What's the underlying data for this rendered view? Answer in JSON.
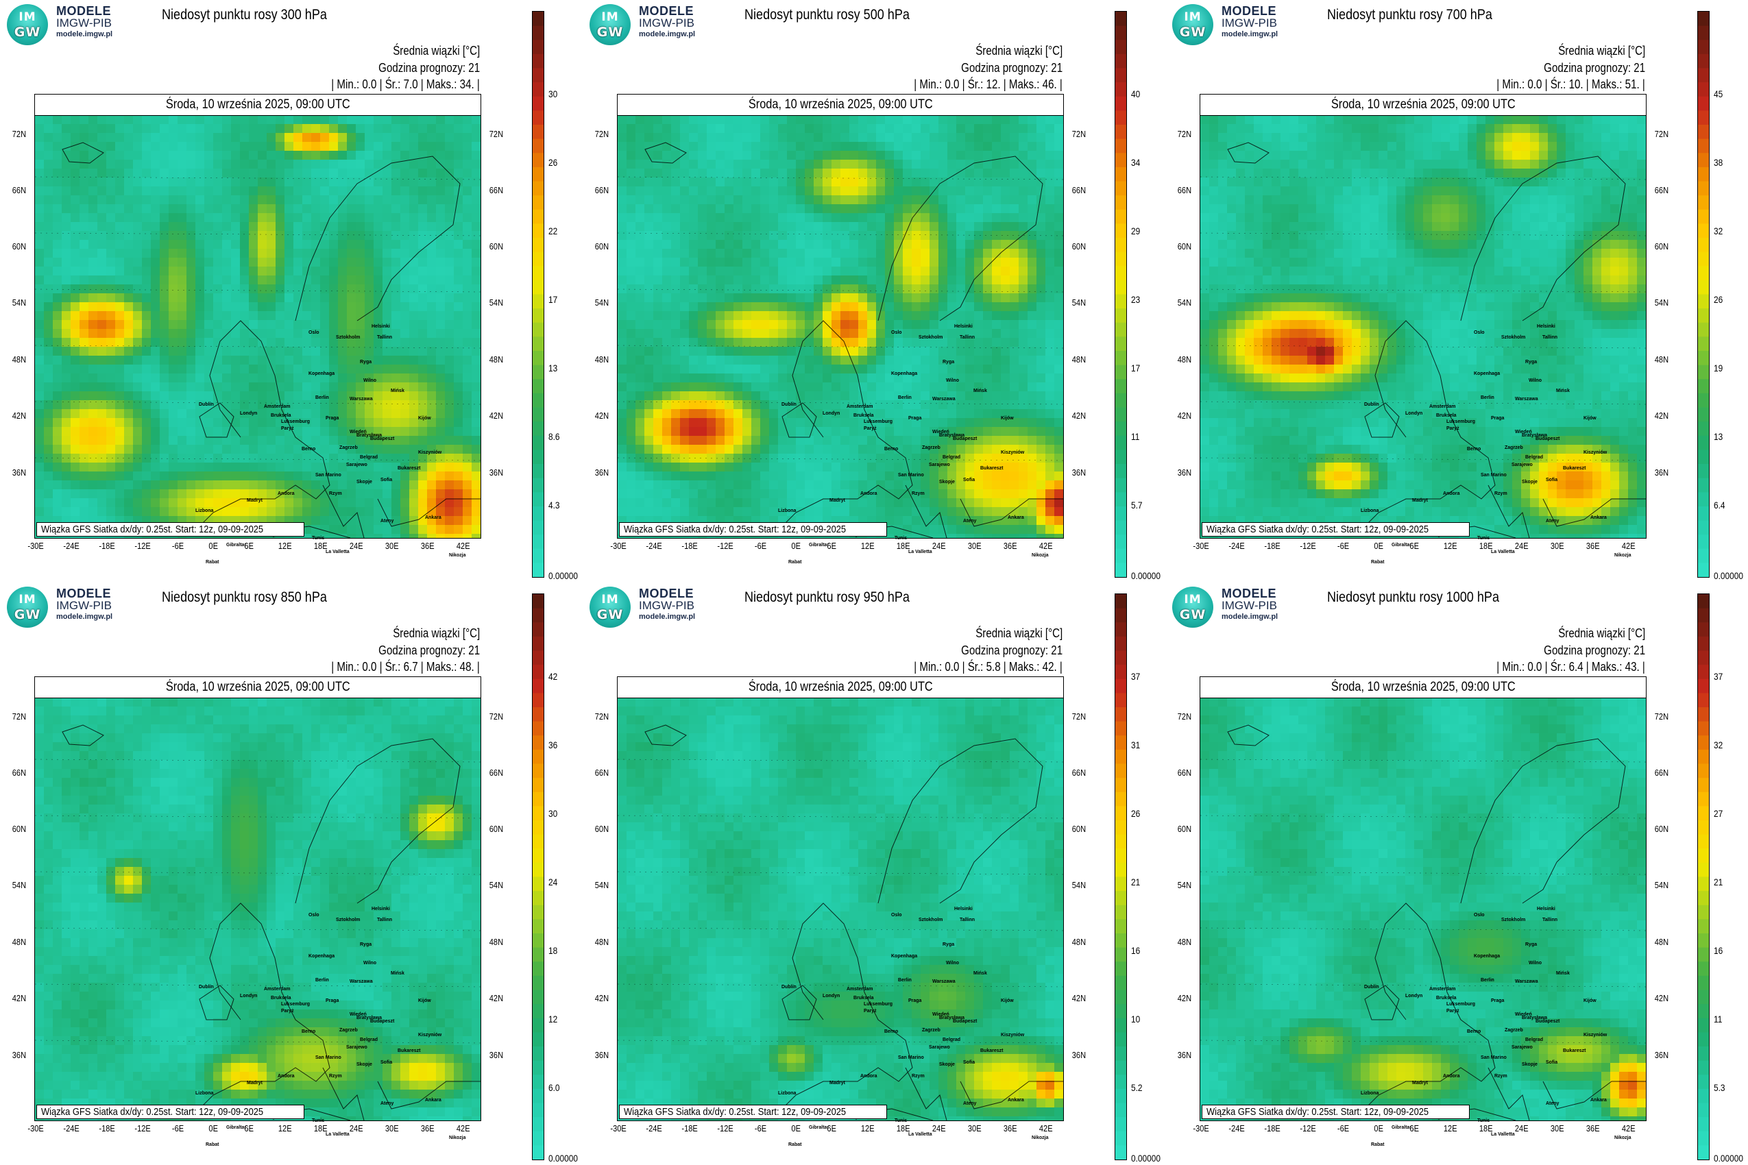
{
  "logo": {
    "circle_top": "IM",
    "circle_bottom": "GW",
    "line1": "MODELE",
    "line2": "IMGW-PIB",
    "line3": "modele.imgw.pl"
  },
  "common": {
    "header_mean": "Średnia wiązki [°C]",
    "header_forecast": "Godzina prognozy: 21",
    "date": "Środa, 10 września 2025, 09:00 UTC",
    "footer": "Wiązka GFS Siatka dx/dy: 0.25st. Start: 12z, 09-09-2025",
    "lat_labels": [
      "72N",
      "66N",
      "60N",
      "54N",
      "48N",
      "42N",
      "36N"
    ],
    "lon_labels": [
      "-30E",
      "-24E",
      "-18E",
      "-12E",
      "-6E",
      "0E",
      "6E",
      "12E",
      "18E",
      "24E",
      "30E",
      "36E",
      "42E"
    ],
    "cities": [
      "Oslo",
      "Sztokholm",
      "Helsinki",
      "Tallinn",
      "Ryga",
      "Kopenhaga",
      "Wilno",
      "Mińsk",
      "Warszawa",
      "Berlin",
      "Amsterdam",
      "Bruksela",
      "Londyn",
      "Dublin",
      "Paryż",
      "Luksemburg",
      "Praga",
      "Wiedeń",
      "Kijów",
      "Bratysława",
      "Budapeszt",
      "Kiszyniów",
      "Zagrzeb",
      "Belgrad",
      "Bukareszt",
      "Sarajewo",
      "Sofia",
      "Skopje",
      "Berno",
      "Rzym",
      "Andora",
      "Madryt",
      "Lizbona",
      "Gibraltar",
      "Rabat",
      "Algier",
      "Tunis",
      "La Valletta",
      "Ateny",
      "Ankara",
      "Nikozja",
      "San Marino"
    ],
    "colors": {
      "low": "#2fe0c4",
      "green": "#1fae6e",
      "yellow": "#ffe000",
      "orange": "#f08a00",
      "red": "#c8261b",
      "dark": "#5a1a0e"
    }
  },
  "panels": [
    {
      "title": "Niedosyt punktu rosy 300 hPa",
      "stats": "| Min.:   0.0 | Śr.:   7.0 | Maks.:   34. |",
      "colorbar_labels": [
        "30",
        "26",
        "22",
        "17",
        "13",
        "8.6",
        "4.3",
        "0.00000"
      ]
    },
    {
      "title": "Niedosyt punktu rosy 500 hPa",
      "stats": "| Min.:   0.0 | Śr.:   12. | Maks.:   46. |",
      "colorbar_labels": [
        "40",
        "34",
        "29",
        "23",
        "17",
        "11",
        "5.7",
        "0.00000"
      ]
    },
    {
      "title": "Niedosyt punktu rosy 700 hPa",
      "stats": "| Min.:   0.0 | Śr.:   10. | Maks.:   51. |",
      "colorbar_labels": [
        "45",
        "38",
        "32",
        "26",
        "19",
        "13",
        "6.4",
        "0.00000"
      ]
    },
    {
      "title": "Niedosyt punktu rosy 850 hPa",
      "stats": "| Min.:   0.0 | Śr.:   6.7 | Maks.:   48. |",
      "colorbar_labels": [
        "42",
        "36",
        "30",
        "24",
        "18",
        "12",
        "6.0",
        "0.00000"
      ]
    },
    {
      "title": "Niedosyt punktu rosy 950 hPa",
      "stats": "| Min.:   0.0 | Śr.:   5.8 | Maks.:   42. |",
      "colorbar_labels": [
        "37",
        "31",
        "26",
        "21",
        "16",
        "10",
        "5.2",
        "0.00000"
      ]
    },
    {
      "title": "Niedosyt punktu rosy 1000 hPa",
      "stats": "| Min.:   0.0 | Śr.:   6.4 | Maks.:   43. |",
      "colorbar_labels": [
        "37",
        "32",
        "27",
        "21",
        "16",
        "11",
        "5.3",
        "0.00000"
      ]
    }
  ]
}
